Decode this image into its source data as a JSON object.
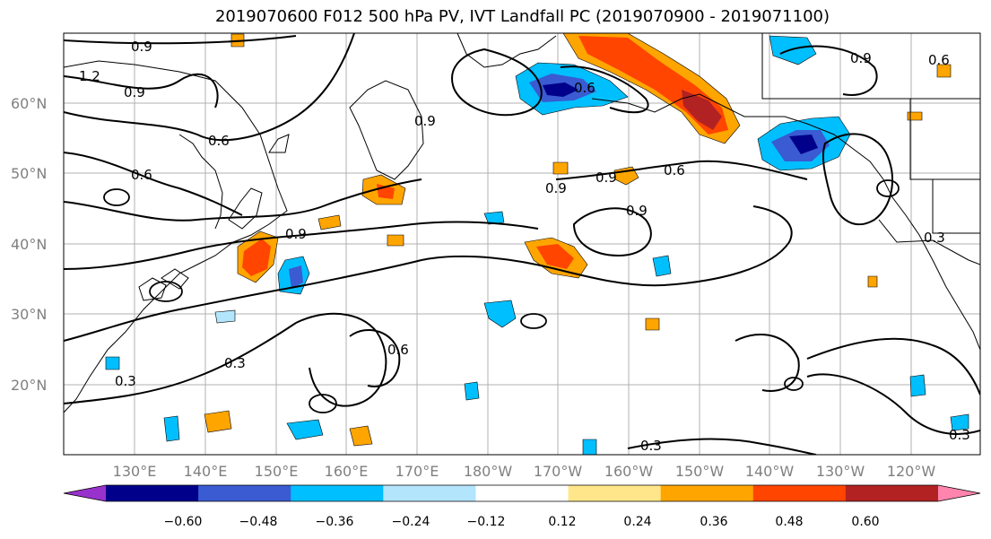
{
  "title": "2019070600 F012 500 hPa PV, IVT Landfall PC (2019070900 - 2019071100)",
  "map": {
    "lat_labels": [
      "60°N",
      "50°N",
      "40°N",
      "30°N",
      "20°N"
    ],
    "lon_labels": [
      "130°E",
      "140°E",
      "150°E",
      "160°E",
      "170°E",
      "180°W",
      "170°W",
      "160°W",
      "150°W",
      "140°W",
      "130°W",
      "120°W"
    ],
    "contour_labels": [
      "0.9",
      "1.2",
      "0.9",
      "0.6",
      "0.6",
      "0.9",
      "0.9",
      "0.6",
      "0.9",
      "0.6",
      "0.9",
      "0.3",
      "0.3",
      "0.6",
      "0.3",
      "0.3",
      "0.3",
      "0.9",
      "0.6",
      "0.9"
    ]
  },
  "colorbar": {
    "ticks": [
      "−0.60",
      "−0.48",
      "−0.36",
      "−0.24",
      "−0.12",
      "0.12",
      "0.24",
      "0.36",
      "0.48",
      "0.60"
    ],
    "colors": [
      "#9932CC",
      "#00008B",
      "#3A5BD2",
      "#00BFFF",
      "#B3E5FC",
      "#FFFFFF",
      "#FFE68A",
      "#FFA500",
      "#FF4500",
      "#B22222",
      "#FF85AE"
    ]
  }
}
